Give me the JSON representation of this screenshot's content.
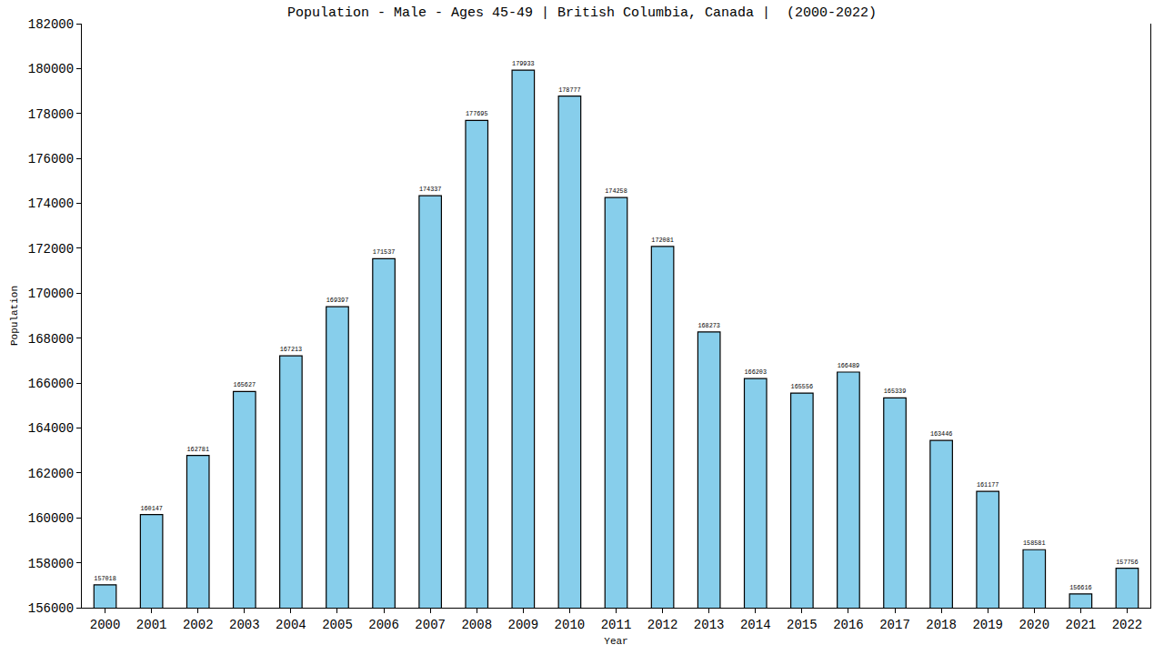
{
  "chart_data": {
    "type": "bar",
    "title": "Population - Male - Ages 45-49 | British Columbia, Canada |  (2000-2022)",
    "x_label": "Year",
    "y_label": "Population",
    "categories": [
      "2000",
      "2001",
      "2002",
      "2003",
      "2004",
      "2005",
      "2006",
      "2007",
      "2008",
      "2009",
      "2010",
      "2011",
      "2012",
      "2013",
      "2014",
      "2015",
      "2016",
      "2017",
      "2018",
      "2019",
      "2020",
      "2021",
      "2022"
    ],
    "values": [
      157018,
      160147,
      162781,
      165627,
      167213,
      169397,
      171537,
      174337,
      177695,
      179933,
      178777,
      174258,
      172081,
      168273,
      166203,
      165556,
      166489,
      165339,
      163446,
      161177,
      158581,
      156616,
      157756
    ],
    "color": "#87ceeb",
    "ylim": [
      156000,
      182000
    ],
    "yticks": [
      156000,
      158000,
      160000,
      162000,
      164000,
      166000,
      168000,
      170000,
      172000,
      174000,
      176000,
      178000,
      180000,
      182000
    ],
    "grid": false,
    "data_labels": true
  }
}
